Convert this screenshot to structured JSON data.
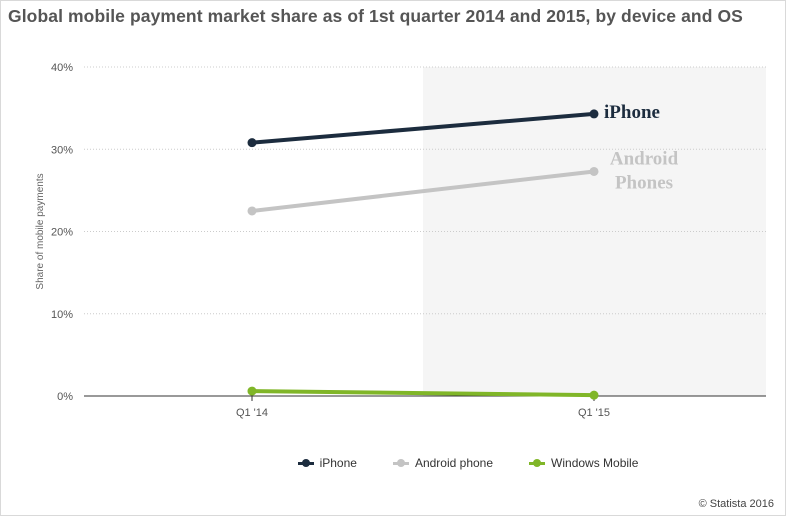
{
  "title": "Global mobile payment market share as of 1st quarter 2014 and 2015, by device and OS",
  "copyright": "© Statista 2016",
  "colors": {
    "iphone": "#1c2c3e",
    "android": "#c4c4c4",
    "windows": "#80b628",
    "shade": "#f5f5f5",
    "grid": "#cccccc",
    "axis": "#555555",
    "label": "#666666"
  },
  "chart_data": {
    "type": "line",
    "categories": [
      "Q1 '14",
      "Q1 '15"
    ],
    "ylabel": "Share of mobile payments",
    "ylim": [
      0,
      40
    ],
    "yticks": [
      "0%",
      "10%",
      "20%",
      "30%",
      "40%"
    ],
    "grid": true,
    "legend": "bottom",
    "series": [
      {
        "name": "iPhone",
        "color": "#1c2c3e",
        "values": [
          30.8,
          34.3
        ],
        "annotation": [
          "iPhone"
        ]
      },
      {
        "name": "Android phone",
        "color": "#c4c4c4",
        "values": [
          22.5,
          27.3
        ],
        "annotation": [
          "Android",
          "Phones"
        ]
      },
      {
        "name": "Windows Mobile",
        "color": "#80b628",
        "values": [
          0.6,
          0.1
        ],
        "annotation": []
      }
    ]
  }
}
